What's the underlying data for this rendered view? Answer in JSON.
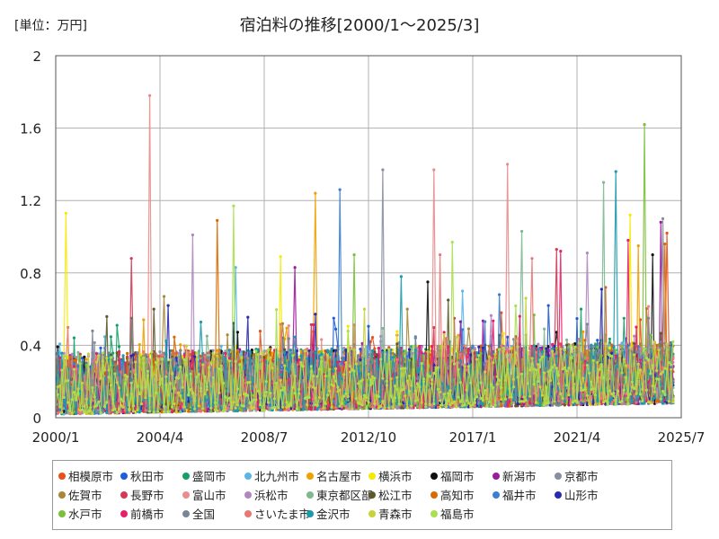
{
  "chart_data": {
    "type": "line",
    "title": "宿泊料の推移[2000/1～2025/3]",
    "unit_label": "[単位：万円]",
    "xlabel": "",
    "ylabel": "",
    "x_range": [
      "2000/1",
      "2025/7"
    ],
    "x_ticks": [
      "2000/1",
      "2004/4",
      "2008/7",
      "2012/10",
      "2017/1",
      "2021/4",
      "2025/7"
    ],
    "ylim": [
      0,
      2
    ],
    "y_ticks": [
      "0",
      "0.4",
      "0.8",
      "1.2",
      "1.6",
      "2"
    ],
    "grid": true,
    "legend_position": "bottom",
    "series": [
      {
        "name": "相模原市",
        "color": "#e8501c",
        "peaks": [
          [
            "2024/12",
            1.02
          ],
          [
            "2022/6",
            0.72
          ],
          [
            "2018/3",
            0.58
          ]
        ]
      },
      {
        "name": "秋田市",
        "color": "#1f5fd6",
        "peaks": [
          [
            "2020/2",
            0.62
          ],
          [
            "2011/5",
            0.55
          ]
        ]
      },
      {
        "name": "盛岡市",
        "color": "#15a06a",
        "peaks": [
          [
            "2003/2",
            0.55
          ],
          [
            "2021/6",
            0.6
          ]
        ]
      },
      {
        "name": "北九州市",
        "color": "#5bb6e6",
        "peaks": [
          [
            "2007/5",
            0.83
          ],
          [
            "2016/8",
            0.7
          ]
        ]
      },
      {
        "name": "名古屋市",
        "color": "#f0a000",
        "peaks": [
          [
            "2010/8",
            1.24
          ],
          [
            "2023/10",
            0.95
          ]
        ]
      },
      {
        "name": "横浜市",
        "color": "#f5ea00",
        "peaks": [
          [
            "2000/6",
            1.13
          ],
          [
            "2023/6",
            1.12
          ],
          [
            "2009/3",
            0.89
          ]
        ]
      },
      {
        "name": "福岡市",
        "color": "#111111",
        "peaks": [
          [
            "2015/3",
            0.75
          ],
          [
            "2024/5",
            0.9
          ]
        ]
      },
      {
        "name": "新潟市",
        "color": "#9b1a9b",
        "peaks": [
          [
            "2009/10",
            0.83
          ],
          [
            "2024/9",
            1.08
          ]
        ]
      },
      {
        "name": "京都市",
        "color": "#8a8fa0",
        "peaks": [
          [
            "2013/5",
            1.37
          ],
          [
            "2024/10",
            1.1
          ]
        ]
      },
      {
        "name": "佐賀市",
        "color": "#a88838",
        "peaks": [
          [
            "2004/6",
            0.67
          ],
          [
            "2014/5",
            0.6
          ]
        ]
      },
      {
        "name": "長野市",
        "color": "#d23a58",
        "peaks": [
          [
            "2003/2",
            0.88
          ],
          [
            "2020/6",
            0.93
          ]
        ]
      },
      {
        "name": "富山市",
        "color": "#e88c8c",
        "peaks": [
          [
            "2003/11",
            1.78
          ],
          [
            "2015/6",
            1.37
          ],
          [
            "2018/6",
            1.4
          ]
        ]
      },
      {
        "name": "浜松市",
        "color": "#b088c0",
        "peaks": [
          [
            "2005/8",
            1.01
          ],
          [
            "2021/9",
            0.91
          ]
        ]
      },
      {
        "name": "東京都区部",
        "color": "#7fb890",
        "peaks": [
          [
            "2019/1",
            1.03
          ],
          [
            "2022/5",
            1.3
          ]
        ]
      },
      {
        "name": "松江市",
        "color": "#5a5a2a",
        "peaks": [
          [
            "2004/1",
            0.6
          ],
          [
            "2016/1",
            0.65
          ]
        ]
      },
      {
        "name": "高知市",
        "color": "#d96a00",
        "peaks": [
          [
            "2006/8",
            1.09
          ],
          [
            "2024/11",
            0.96
          ]
        ]
      },
      {
        "name": "福井市",
        "color": "#3a7fd0",
        "peaks": [
          [
            "2011/8",
            1.26
          ],
          [
            "2018/2",
            0.68
          ]
        ]
      },
      {
        "name": "山形市",
        "color": "#2a2ab0",
        "peaks": [
          [
            "2004/8",
            0.62
          ],
          [
            "2022/4",
            0.71
          ]
        ]
      },
      {
        "name": "水戸市",
        "color": "#7ac038",
        "peaks": [
          [
            "2024/1",
            1.62
          ],
          [
            "2012/3",
            0.9
          ]
        ]
      },
      {
        "name": "前橋市",
        "color": "#e8206a",
        "peaks": [
          [
            "2020/8",
            0.92
          ],
          [
            "2023/5",
            0.98
          ]
        ]
      },
      {
        "name": "全国",
        "color": "#7a8696",
        "peaks": [
          [
            "2016/2",
            0.42
          ],
          [
            "2024/3",
            0.55
          ]
        ]
      },
      {
        "name": "さいたま市",
        "color": "#e87878",
        "peaks": [
          [
            "2015/9",
            0.9
          ],
          [
            "2019/6",
            0.88
          ]
        ]
      },
      {
        "name": "金沢市",
        "color": "#1a9aaa",
        "peaks": [
          [
            "2022/11",
            1.36
          ],
          [
            "2014/2",
            0.78
          ]
        ]
      },
      {
        "name": "青森市",
        "color": "#c8d23a",
        "peaks": [
          [
            "2012/8",
            0.6
          ],
          [
            "2019/3",
            0.66
          ]
        ]
      },
      {
        "name": "福島市",
        "color": "#a8e050",
        "peaks": [
          [
            "2016/3",
            0.97
          ],
          [
            "2007/4",
            1.17
          ]
        ]
      }
    ]
  }
}
